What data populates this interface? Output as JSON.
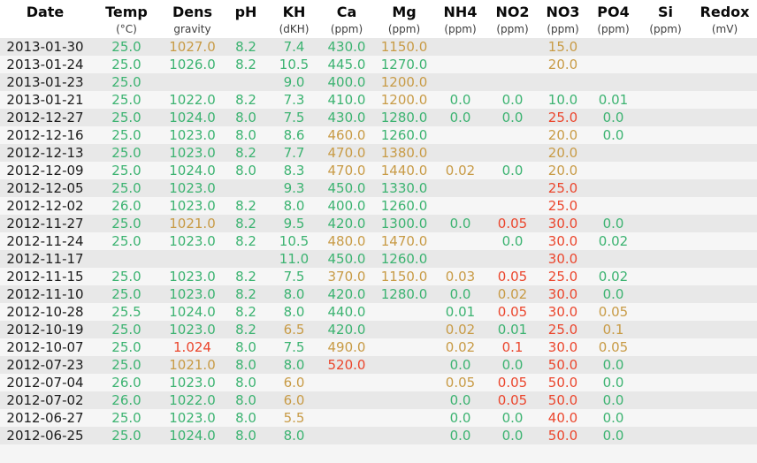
{
  "table": {
    "columns": [
      {
        "key": "date",
        "label": "Date",
        "unit": ""
      },
      {
        "key": "temp",
        "label": "Temp",
        "unit": "(°C)"
      },
      {
        "key": "dens",
        "label": "Dens",
        "unit": "gravity"
      },
      {
        "key": "ph",
        "label": "pH",
        "unit": ""
      },
      {
        "key": "kh",
        "label": "KH",
        "unit": "(dKH)"
      },
      {
        "key": "ca",
        "label": "Ca",
        "unit": "(ppm)"
      },
      {
        "key": "mg",
        "label": "Mg",
        "unit": "(ppm)"
      },
      {
        "key": "nh4",
        "label": "NH4",
        "unit": "(ppm)"
      },
      {
        "key": "no2",
        "label": "NO2",
        "unit": "(ppm)"
      },
      {
        "key": "no3",
        "label": "NO3",
        "unit": "(ppm)"
      },
      {
        "key": "po4",
        "label": "PO4",
        "unit": "(ppm)"
      },
      {
        "key": "si",
        "label": "Si",
        "unit": "(ppm)"
      },
      {
        "key": "redox",
        "label": "Redox",
        "unit": "(mV)"
      }
    ],
    "colors": {
      "ok": "#3cb371",
      "warn": "#c89b46",
      "alert": "#eb462d",
      "date_text": "#1c1c1c",
      "header_text": "#0a0a0a",
      "unit_text": "#3c3c3c",
      "stripe_odd": "#e8e8e8",
      "stripe_even": "#f6f6f6"
    },
    "rows": [
      {
        "date": "2013-01-30",
        "values": [
          [
            "25.0",
            "ok"
          ],
          [
            "1027.0",
            "warn"
          ],
          [
            "8.2",
            "ok"
          ],
          [
            "7.4",
            "ok"
          ],
          [
            "430.0",
            "ok"
          ],
          [
            "1150.0",
            "warn"
          ],
          [
            "",
            ""
          ],
          [
            "",
            ""
          ],
          [
            "15.0",
            "warn"
          ],
          [
            "",
            ""
          ],
          [
            "",
            ""
          ],
          [
            "",
            ""
          ]
        ]
      },
      {
        "date": "2013-01-24",
        "values": [
          [
            "25.0",
            "ok"
          ],
          [
            "1026.0",
            "ok"
          ],
          [
            "8.2",
            "ok"
          ],
          [
            "10.5",
            "ok"
          ],
          [
            "445.0",
            "ok"
          ],
          [
            "1270.0",
            "ok"
          ],
          [
            "",
            ""
          ],
          [
            "",
            ""
          ],
          [
            "20.0",
            "warn"
          ],
          [
            "",
            ""
          ],
          [
            "",
            ""
          ],
          [
            "",
            ""
          ]
        ]
      },
      {
        "date": "2013-01-23",
        "values": [
          [
            "25.0",
            "ok"
          ],
          [
            "",
            ""
          ],
          [
            "",
            ""
          ],
          [
            "9.0",
            "ok"
          ],
          [
            "400.0",
            "ok"
          ],
          [
            "1200.0",
            "warn"
          ],
          [
            "",
            ""
          ],
          [
            "",
            ""
          ],
          [
            "",
            ""
          ],
          [
            "",
            ""
          ],
          [
            "",
            ""
          ],
          [
            "",
            ""
          ]
        ]
      },
      {
        "date": "2013-01-21",
        "values": [
          [
            "25.0",
            "ok"
          ],
          [
            "1022.0",
            "ok"
          ],
          [
            "8.2",
            "ok"
          ],
          [
            "7.3",
            "ok"
          ],
          [
            "410.0",
            "ok"
          ],
          [
            "1200.0",
            "warn"
          ],
          [
            "0.0",
            "ok"
          ],
          [
            "0.0",
            "ok"
          ],
          [
            "10.0",
            "ok"
          ],
          [
            "0.01",
            "ok"
          ],
          [
            "",
            ""
          ],
          [
            "",
            ""
          ]
        ]
      },
      {
        "date": "2012-12-27",
        "values": [
          [
            "25.0",
            "ok"
          ],
          [
            "1024.0",
            "ok"
          ],
          [
            "8.0",
            "ok"
          ],
          [
            "7.5",
            "ok"
          ],
          [
            "430.0",
            "ok"
          ],
          [
            "1280.0",
            "ok"
          ],
          [
            "0.0",
            "ok"
          ],
          [
            "0.0",
            "ok"
          ],
          [
            "25.0",
            "alert"
          ],
          [
            "0.0",
            "ok"
          ],
          [
            "",
            ""
          ],
          [
            "",
            ""
          ]
        ]
      },
      {
        "date": "2012-12-16",
        "values": [
          [
            "25.0",
            "ok"
          ],
          [
            "1023.0",
            "ok"
          ],
          [
            "8.0",
            "ok"
          ],
          [
            "8.6",
            "ok"
          ],
          [
            "460.0",
            "warn"
          ],
          [
            "1260.0",
            "ok"
          ],
          [
            "",
            ""
          ],
          [
            "",
            ""
          ],
          [
            "20.0",
            "warn"
          ],
          [
            "0.0",
            "ok"
          ],
          [
            "",
            ""
          ],
          [
            "",
            ""
          ]
        ]
      },
      {
        "date": "2012-12-13",
        "values": [
          [
            "25.0",
            "ok"
          ],
          [
            "1023.0",
            "ok"
          ],
          [
            "8.2",
            "ok"
          ],
          [
            "7.7",
            "ok"
          ],
          [
            "470.0",
            "warn"
          ],
          [
            "1380.0",
            "warn"
          ],
          [
            "",
            ""
          ],
          [
            "",
            ""
          ],
          [
            "20.0",
            "warn"
          ],
          [
            "",
            ""
          ],
          [
            "",
            ""
          ],
          [
            "",
            ""
          ]
        ]
      },
      {
        "date": "2012-12-09",
        "values": [
          [
            "25.0",
            "ok"
          ],
          [
            "1024.0",
            "ok"
          ],
          [
            "8.0",
            "ok"
          ],
          [
            "8.3",
            "ok"
          ],
          [
            "470.0",
            "warn"
          ],
          [
            "1440.0",
            "warn"
          ],
          [
            "0.02",
            "warn"
          ],
          [
            "0.0",
            "ok"
          ],
          [
            "20.0",
            "warn"
          ],
          [
            "",
            ""
          ],
          [
            "",
            ""
          ],
          [
            "",
            ""
          ]
        ]
      },
      {
        "date": "2012-12-05",
        "values": [
          [
            "25.0",
            "ok"
          ],
          [
            "1023.0",
            "ok"
          ],
          [
            "",
            ""
          ],
          [
            "9.3",
            "ok"
          ],
          [
            "450.0",
            "ok"
          ],
          [
            "1330.0",
            "ok"
          ],
          [
            "",
            ""
          ],
          [
            "",
            ""
          ],
          [
            "25.0",
            "alert"
          ],
          [
            "",
            ""
          ],
          [
            "",
            ""
          ],
          [
            "",
            ""
          ]
        ]
      },
      {
        "date": "2012-12-02",
        "values": [
          [
            "26.0",
            "ok"
          ],
          [
            "1023.0",
            "ok"
          ],
          [
            "8.2",
            "ok"
          ],
          [
            "8.0",
            "ok"
          ],
          [
            "400.0",
            "ok"
          ],
          [
            "1260.0",
            "ok"
          ],
          [
            "",
            ""
          ],
          [
            "",
            ""
          ],
          [
            "25.0",
            "alert"
          ],
          [
            "",
            ""
          ],
          [
            "",
            ""
          ],
          [
            "",
            ""
          ]
        ]
      },
      {
        "date": "2012-11-27",
        "values": [
          [
            "25.0",
            "ok"
          ],
          [
            "1021.0",
            "warn"
          ],
          [
            "8.2",
            "ok"
          ],
          [
            "9.5",
            "ok"
          ],
          [
            "420.0",
            "ok"
          ],
          [
            "1300.0",
            "ok"
          ],
          [
            "0.0",
            "ok"
          ],
          [
            "0.05",
            "alert"
          ],
          [
            "30.0",
            "alert"
          ],
          [
            "0.0",
            "ok"
          ],
          [
            "",
            ""
          ],
          [
            "",
            ""
          ]
        ]
      },
      {
        "date": "2012-11-24",
        "values": [
          [
            "25.0",
            "ok"
          ],
          [
            "1023.0",
            "ok"
          ],
          [
            "8.2",
            "ok"
          ],
          [
            "10.5",
            "ok"
          ],
          [
            "480.0",
            "warn"
          ],
          [
            "1470.0",
            "warn"
          ],
          [
            "",
            ""
          ],
          [
            "0.0",
            "ok"
          ],
          [
            "30.0",
            "alert"
          ],
          [
            "0.02",
            "ok"
          ],
          [
            "",
            ""
          ],
          [
            "",
            ""
          ]
        ]
      },
      {
        "date": "2012-11-17",
        "values": [
          [
            "",
            ""
          ],
          [
            "",
            ""
          ],
          [
            "",
            ""
          ],
          [
            "11.0",
            "ok"
          ],
          [
            "450.0",
            "ok"
          ],
          [
            "1260.0",
            "ok"
          ],
          [
            "",
            ""
          ],
          [
            "",
            ""
          ],
          [
            "30.0",
            "alert"
          ],
          [
            "",
            ""
          ],
          [
            "",
            ""
          ],
          [
            "",
            ""
          ]
        ]
      },
      {
        "date": "2012-11-15",
        "values": [
          [
            "25.0",
            "ok"
          ],
          [
            "1023.0",
            "ok"
          ],
          [
            "8.2",
            "ok"
          ],
          [
            "7.5",
            "ok"
          ],
          [
            "370.0",
            "warn"
          ],
          [
            "1150.0",
            "warn"
          ],
          [
            "0.03",
            "warn"
          ],
          [
            "0.05",
            "alert"
          ],
          [
            "25.0",
            "alert"
          ],
          [
            "0.02",
            "ok"
          ],
          [
            "",
            ""
          ],
          [
            "",
            ""
          ]
        ]
      },
      {
        "date": "2012-11-10",
        "values": [
          [
            "25.0",
            "ok"
          ],
          [
            "1023.0",
            "ok"
          ],
          [
            "8.2",
            "ok"
          ],
          [
            "8.0",
            "ok"
          ],
          [
            "420.0",
            "ok"
          ],
          [
            "1280.0",
            "ok"
          ],
          [
            "0.0",
            "ok"
          ],
          [
            "0.02",
            "warn"
          ],
          [
            "30.0",
            "alert"
          ],
          [
            "0.0",
            "ok"
          ],
          [
            "",
            ""
          ],
          [
            "",
            ""
          ]
        ]
      },
      {
        "date": "2012-10-28",
        "values": [
          [
            "25.5",
            "ok"
          ],
          [
            "1024.0",
            "ok"
          ],
          [
            "8.2",
            "ok"
          ],
          [
            "8.0",
            "ok"
          ],
          [
            "440.0",
            "ok"
          ],
          [
            "",
            ""
          ],
          [
            "0.01",
            "ok"
          ],
          [
            "0.05",
            "alert"
          ],
          [
            "30.0",
            "alert"
          ],
          [
            "0.05",
            "warn"
          ],
          [
            "",
            ""
          ],
          [
            "",
            ""
          ]
        ]
      },
      {
        "date": "2012-10-19",
        "values": [
          [
            "25.0",
            "ok"
          ],
          [
            "1023.0",
            "ok"
          ],
          [
            "8.2",
            "ok"
          ],
          [
            "6.5",
            "warn"
          ],
          [
            "420.0",
            "ok"
          ],
          [
            "",
            ""
          ],
          [
            "0.02",
            "warn"
          ],
          [
            "0.01",
            "ok"
          ],
          [
            "25.0",
            "alert"
          ],
          [
            "0.1",
            "warn"
          ],
          [
            "",
            ""
          ],
          [
            "",
            ""
          ]
        ]
      },
      {
        "date": "2012-10-07",
        "values": [
          [
            "25.0",
            "ok"
          ],
          [
            "1.024",
            "alert"
          ],
          [
            "8.0",
            "ok"
          ],
          [
            "7.5",
            "ok"
          ],
          [
            "490.0",
            "warn"
          ],
          [
            "",
            ""
          ],
          [
            "0.02",
            "warn"
          ],
          [
            "0.1",
            "alert"
          ],
          [
            "30.0",
            "alert"
          ],
          [
            "0.05",
            "warn"
          ],
          [
            "",
            ""
          ],
          [
            "",
            ""
          ]
        ]
      },
      {
        "date": "2012-07-23",
        "values": [
          [
            "25.0",
            "ok"
          ],
          [
            "1021.0",
            "warn"
          ],
          [
            "8.0",
            "ok"
          ],
          [
            "8.0",
            "ok"
          ],
          [
            "520.0",
            "alert"
          ],
          [
            "",
            ""
          ],
          [
            "0.0",
            "ok"
          ],
          [
            "0.0",
            "ok"
          ],
          [
            "50.0",
            "alert"
          ],
          [
            "0.0",
            "ok"
          ],
          [
            "",
            ""
          ],
          [
            "",
            ""
          ]
        ]
      },
      {
        "date": "2012-07-04",
        "values": [
          [
            "26.0",
            "ok"
          ],
          [
            "1023.0",
            "ok"
          ],
          [
            "8.0",
            "ok"
          ],
          [
            "6.0",
            "warn"
          ],
          [
            "",
            ""
          ],
          [
            "",
            ""
          ],
          [
            "0.05",
            "warn"
          ],
          [
            "0.05",
            "alert"
          ],
          [
            "50.0",
            "alert"
          ],
          [
            "0.0",
            "ok"
          ],
          [
            "",
            ""
          ],
          [
            "",
            ""
          ]
        ]
      },
      {
        "date": "2012-07-02",
        "values": [
          [
            "26.0",
            "ok"
          ],
          [
            "1022.0",
            "ok"
          ],
          [
            "8.0",
            "ok"
          ],
          [
            "6.0",
            "warn"
          ],
          [
            "",
            ""
          ],
          [
            "",
            ""
          ],
          [
            "0.0",
            "ok"
          ],
          [
            "0.05",
            "alert"
          ],
          [
            "50.0",
            "alert"
          ],
          [
            "0.0",
            "ok"
          ],
          [
            "",
            ""
          ],
          [
            "",
            ""
          ]
        ]
      },
      {
        "date": "2012-06-27",
        "values": [
          [
            "25.0",
            "ok"
          ],
          [
            "1023.0",
            "ok"
          ],
          [
            "8.0",
            "ok"
          ],
          [
            "5.5",
            "warn"
          ],
          [
            "",
            ""
          ],
          [
            "",
            ""
          ],
          [
            "0.0",
            "ok"
          ],
          [
            "0.0",
            "ok"
          ],
          [
            "40.0",
            "alert"
          ],
          [
            "0.0",
            "ok"
          ],
          [
            "",
            ""
          ],
          [
            "",
            ""
          ]
        ]
      },
      {
        "date": "2012-06-25",
        "values": [
          [
            "25.0",
            "ok"
          ],
          [
            "1024.0",
            "ok"
          ],
          [
            "8.0",
            "ok"
          ],
          [
            "8.0",
            "ok"
          ],
          [
            "",
            ""
          ],
          [
            "",
            ""
          ],
          [
            "0.0",
            "ok"
          ],
          [
            "0.0",
            "ok"
          ],
          [
            "50.0",
            "alert"
          ],
          [
            "0.0",
            "ok"
          ],
          [
            "",
            ""
          ],
          [
            "",
            ""
          ]
        ]
      }
    ]
  }
}
